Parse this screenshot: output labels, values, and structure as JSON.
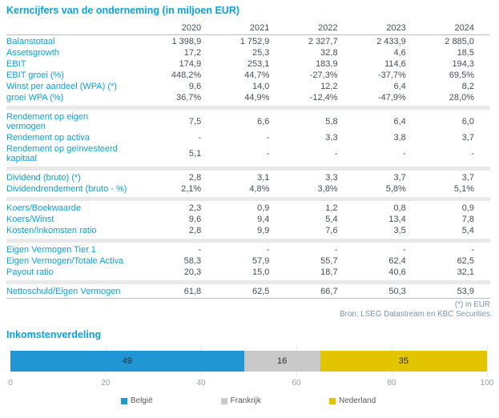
{
  "table": {
    "title": "Kerncijfers van de onderneming (in miljoen EUR)",
    "years": [
      "2020",
      "2021",
      "2022",
      "2023",
      "2024"
    ],
    "sections": [
      {
        "rows": [
          {
            "label": "Balanstotaal",
            "values": [
              "1 398,9",
              "1 752,9",
              "2 327,7",
              "2 433,9",
              "2 885,0"
            ]
          },
          {
            "label": "Assetsgrowth",
            "values": [
              "17,2",
              "25,3",
              "32,8",
              "4,6",
              "18,5"
            ]
          },
          {
            "label": "EBIT",
            "values": [
              "174,9",
              "253,1",
              "183,9",
              "114,6",
              "194,3"
            ]
          },
          {
            "label": "EBIT groei (%)",
            "values": [
              "448,2%",
              "44,7%",
              "-27,3%",
              "-37,7%",
              "69,5%"
            ]
          },
          {
            "label": "Winst per aandeel (WPA) (*)",
            "values": [
              "9,6",
              "14,0",
              "12,2",
              "6,4",
              "8,2"
            ]
          },
          {
            "label": "groei WPA (%)",
            "values": [
              "36,7%",
              "44,9%",
              "-12,4%",
              "-47,9%",
              "28,0%"
            ]
          }
        ]
      },
      {
        "rows": [
          {
            "label": "Rendement op eigen vermogen",
            "values": [
              "7,5",
              "6,6",
              "5,8",
              "6,4",
              "6,0"
            ]
          },
          {
            "label": "Rendement op activa",
            "values": [
              "-",
              "-",
              "3,3",
              "3,8",
              "3,7"
            ]
          },
          {
            "label": "Rendement op geïnvesteerd kapitaal",
            "values": [
              "5,1",
              "-",
              "-",
              "-",
              "-"
            ]
          }
        ]
      },
      {
        "rows": [
          {
            "label": "Dividend (bruto) (*)",
            "values": [
              "2,8",
              "3,1",
              "3,3",
              "3,7",
              "3,7"
            ]
          },
          {
            "label": "Dividendrendement (bruto - %)",
            "values": [
              "2,1%",
              "4,8%",
              "3,8%",
              "5,8%",
              "5,1%"
            ]
          }
        ]
      },
      {
        "rows": [
          {
            "label": "Koers/Boekwaarde",
            "values": [
              "2,3",
              "0,9",
              "1,2",
              "0,8",
              "0,9"
            ]
          },
          {
            "label": "Koers/Winst",
            "values": [
              "9,6",
              "9,4",
              "5,4",
              "13,4",
              "7,8"
            ]
          },
          {
            "label": "Kosten/Inkomsten ratio",
            "values": [
              "2,8",
              "9,9",
              "7,6",
              "3,5",
              "5,4"
            ]
          }
        ]
      },
      {
        "rows": [
          {
            "label": "Eigen Vermogen Tier 1",
            "values": [
              "-",
              "-",
              "-",
              "-",
              "-"
            ]
          },
          {
            "label": "Eigen Vermogen/Totale Activa",
            "values": [
              "58,3",
              "57,9",
              "55,7",
              "62,4",
              "62,5"
            ]
          },
          {
            "label": "Payout ratio",
            "values": [
              "20,3",
              "15,0",
              "18,7",
              "40,6",
              "32,1"
            ]
          }
        ]
      },
      {
        "rows": [
          {
            "label": "Nettoschuld/Eigen Vermogen",
            "values": [
              "61,8",
              "62,5",
              "66,7",
              "50,3",
              "53,9"
            ]
          }
        ]
      }
    ],
    "footnote": "(*) in EUR",
    "source": "Bron: LSEG Datastream en KBC Securities"
  },
  "chart_data": {
    "type": "bar",
    "stacked": true,
    "orientation": "horizontal",
    "title": "Inkomstenverdeling",
    "series": [
      {
        "name": "België",
        "values": [
          49
        ],
        "color": "#2196d4"
      },
      {
        "name": "Frankrijk",
        "values": [
          16
        ],
        "color": "#c9c9c9"
      },
      {
        "name": "Nederland",
        "values": [
          35
        ],
        "color": "#e3c400"
      }
    ],
    "xlim": [
      0,
      100
    ],
    "xticks": [
      0,
      20,
      40,
      60,
      80,
      100
    ],
    "grid": true,
    "legend_position": "bottom",
    "bar_labels": true
  },
  "colors": {
    "accent_blue": "#0aa1e1",
    "value_text": "#454f59",
    "note_text": "#7b94ae",
    "section_band": "#e9e9e9",
    "divider_line": "#b9bdc0"
  }
}
